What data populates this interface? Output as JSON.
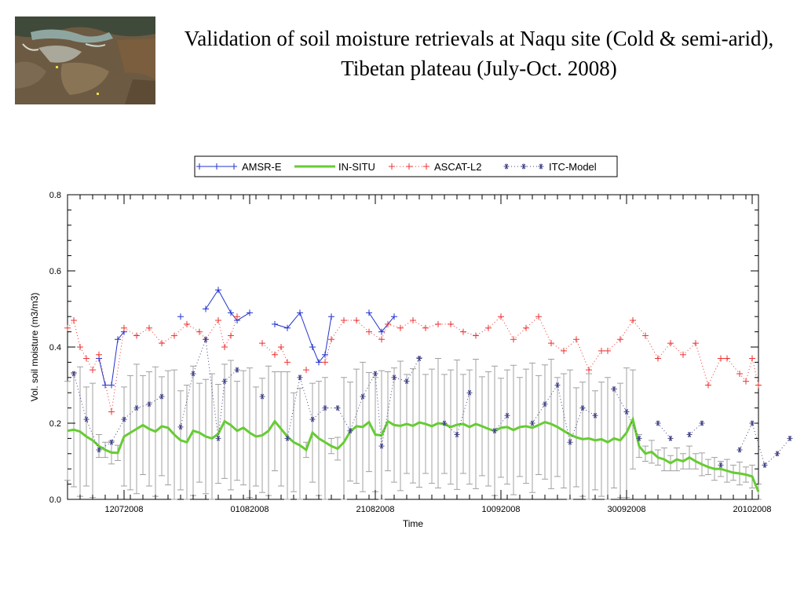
{
  "slide": {
    "title": "Validation of soil moisture retrievals at Naqu site (Cold & semi-arid), Tibetan plateau (July-Oct. 2008)"
  },
  "thumbnail": {
    "icon": "satellite-map-thumbnail"
  },
  "chart_data": {
    "type": "line",
    "xlabel": "Time",
    "ylabel": "Vol. soil moisture (m3/m3)",
    "x_unit": "date (DDMMYYYY)",
    "xlim": [
      "03072008",
      "21102008"
    ],
    "x_ticks": [
      "12072008",
      "01082008",
      "21082008",
      "10092008",
      "30092008",
      "20102008"
    ],
    "ylim": [
      0,
      0.8
    ],
    "y_ticks": [
      "0.0",
      "0.2",
      "0.4",
      "0.6",
      "0.8"
    ],
    "grid": false,
    "legend_position": "top-center",
    "series": [
      {
        "name": "AMSR-E",
        "color": "#2233cc",
        "marker": "+",
        "linestyle": "solid",
        "points": [
          [
            "08072008",
            0.37
          ],
          [
            "09072008",
            0.3
          ],
          [
            "10072008",
            0.3
          ],
          [
            "11072008",
            0.42
          ],
          [
            "12072008",
            0.44
          ],
          [
            "21072008",
            0.48
          ],
          [
            "25072008",
            0.5
          ],
          [
            "27072008",
            0.55
          ],
          [
            "29072008",
            0.49
          ],
          [
            "30072008",
            0.47
          ],
          [
            "01082008",
            0.49
          ],
          [
            "05082008",
            0.46
          ],
          [
            "07082008",
            0.45
          ],
          [
            "09082008",
            0.49
          ],
          [
            "11082008",
            0.4
          ],
          [
            "12082008",
            0.36
          ],
          [
            "13082008",
            0.38
          ],
          [
            "14082008",
            0.48
          ],
          [
            "20082008",
            0.49
          ],
          [
            "22082008",
            0.44
          ],
          [
            "24082008",
            0.48
          ]
        ]
      },
      {
        "name": "IN-SITU",
        "color": "#66cc33",
        "linestyle": "solid",
        "error_bars": true,
        "points": [
          [
            "03072008",
            0.18
          ],
          [
            "04072008",
            0.183
          ],
          [
            "05072008",
            0.178
          ],
          [
            "06072008",
            0.165
          ],
          [
            "07072008",
            0.155
          ],
          [
            "08072008",
            0.14
          ],
          [
            "09072008",
            0.13
          ],
          [
            "10072008",
            0.123
          ],
          [
            "11072008",
            0.122
          ],
          [
            "12072008",
            0.165
          ],
          [
            "13072008",
            0.175
          ],
          [
            "14072008",
            0.185
          ],
          [
            "15072008",
            0.195
          ],
          [
            "16072008",
            0.185
          ],
          [
            "17072008",
            0.178
          ],
          [
            "18072008",
            0.192
          ],
          [
            "19072008",
            0.188
          ],
          [
            "20072008",
            0.17
          ],
          [
            "21072008",
            0.155
          ],
          [
            "22072008",
            0.15
          ],
          [
            "23072008",
            0.18
          ],
          [
            "24072008",
            0.175
          ],
          [
            "25072008",
            0.165
          ],
          [
            "26072008",
            0.16
          ],
          [
            "27072008",
            0.172
          ],
          [
            "28072008",
            0.205
          ],
          [
            "29072008",
            0.195
          ],
          [
            "30072008",
            0.18
          ],
          [
            "31072008",
            0.188
          ],
          [
            "01082008",
            0.175
          ],
          [
            "02082008",
            0.165
          ],
          [
            "03082008",
            0.168
          ],
          [
            "04082008",
            0.18
          ],
          [
            "05082008",
            0.205
          ],
          [
            "06082008",
            0.185
          ],
          [
            "07082008",
            0.165
          ],
          [
            "08082008",
            0.15
          ],
          [
            "09082008",
            0.142
          ],
          [
            "10082008",
            0.13
          ],
          [
            "11082008",
            0.175
          ],
          [
            "12082008",
            0.16
          ],
          [
            "13082008",
            0.15
          ],
          [
            "14082008",
            0.14
          ],
          [
            "15082008",
            0.133
          ],
          [
            "16082008",
            0.15
          ],
          [
            "17082008",
            0.178
          ],
          [
            "18082008",
            0.192
          ],
          [
            "19082008",
            0.19
          ],
          [
            "20082008",
            0.203
          ],
          [
            "21082008",
            0.17
          ],
          [
            "22082008",
            0.168
          ],
          [
            "23082008",
            0.205
          ],
          [
            "24082008",
            0.195
          ],
          [
            "25082008",
            0.193
          ],
          [
            "26082008",
            0.198
          ],
          [
            "27082008",
            0.193
          ],
          [
            "28082008",
            0.202
          ],
          [
            "29082008",
            0.198
          ],
          [
            "30082008",
            0.192
          ],
          [
            "31082008",
            0.2
          ],
          [
            "01092008",
            0.198
          ],
          [
            "02092008",
            0.19
          ],
          [
            "03092008",
            0.196
          ],
          [
            "04092008",
            0.198
          ],
          [
            "05092008",
            0.19
          ],
          [
            "06092008",
            0.198
          ],
          [
            "07092008",
            0.192
          ],
          [
            "08092008",
            0.185
          ],
          [
            "09092008",
            0.18
          ],
          [
            "10092008",
            0.188
          ],
          [
            "11092008",
            0.19
          ],
          [
            "12092008",
            0.182
          ],
          [
            "13092008",
            0.19
          ],
          [
            "14092008",
            0.192
          ],
          [
            "15092008",
            0.188
          ],
          [
            "16092008",
            0.195
          ],
          [
            "17092008",
            0.203
          ],
          [
            "18092008",
            0.198
          ],
          [
            "19092008",
            0.19
          ],
          [
            "20092008",
            0.18
          ],
          [
            "21092008",
            0.17
          ],
          [
            "22092008",
            0.163
          ],
          [
            "23092008",
            0.158
          ],
          [
            "24092008",
            0.16
          ],
          [
            "25092008",
            0.155
          ],
          [
            "26092008",
            0.158
          ],
          [
            "27092008",
            0.15
          ],
          [
            "28092008",
            0.16
          ],
          [
            "29092008",
            0.155
          ],
          [
            "30092008",
            0.175
          ],
          [
            "01102008",
            0.21
          ],
          [
            "02102008",
            0.14
          ],
          [
            "03102008",
            0.12
          ],
          [
            "04102008",
            0.125
          ],
          [
            "05102008",
            0.11
          ],
          [
            "06102008",
            0.105
          ],
          [
            "07102008",
            0.095
          ],
          [
            "08102008",
            0.105
          ],
          [
            "09102008",
            0.1
          ],
          [
            "10102008",
            0.11
          ],
          [
            "11102008",
            0.1
          ],
          [
            "12102008",
            0.092
          ],
          [
            "13102008",
            0.085
          ],
          [
            "14102008",
            0.08
          ],
          [
            "15102008",
            0.08
          ],
          [
            "16102008",
            0.075
          ],
          [
            "17102008",
            0.07
          ],
          [
            "18102008",
            0.068
          ],
          [
            "19102008",
            0.065
          ],
          [
            "20102008",
            0.06
          ],
          [
            "21102008",
            0.02
          ]
        ]
      },
      {
        "name": "ASCAT-L2",
        "color": "#ee3333",
        "marker": "+",
        "linestyle": "dotted",
        "points": [
          [
            "03072008",
            0.45
          ],
          [
            "04072008",
            0.47
          ],
          [
            "05072008",
            0.4
          ],
          [
            "06072008",
            0.37
          ],
          [
            "07072008",
            0.34
          ],
          [
            "08072008",
            0.38
          ],
          [
            "10072008",
            0.23
          ],
          [
            "12072008",
            0.45
          ],
          [
            "14072008",
            0.43
          ],
          [
            "16072008",
            0.45
          ],
          [
            "18072008",
            0.41
          ],
          [
            "20072008",
            0.43
          ],
          [
            "22072008",
            0.46
          ],
          [
            "24072008",
            0.44
          ],
          [
            "25072008",
            0.42
          ],
          [
            "27072008",
            0.47
          ],
          [
            "28072008",
            0.4
          ],
          [
            "29072008",
            0.43
          ],
          [
            "30072008",
            0.48
          ],
          [
            "03082008",
            0.41
          ],
          [
            "05082008",
            0.38
          ],
          [
            "06082008",
            0.4
          ],
          [
            "07082008",
            0.36
          ],
          [
            "10082008",
            0.34
          ],
          [
            "13082008",
            0.36
          ],
          [
            "14082008",
            0.42
          ],
          [
            "16082008",
            0.47
          ],
          [
            "18082008",
            0.47
          ],
          [
            "20082008",
            0.44
          ],
          [
            "22082008",
            0.42
          ],
          [
            "23082008",
            0.46
          ],
          [
            "25082008",
            0.45
          ],
          [
            "27082008",
            0.47
          ],
          [
            "29082008",
            0.45
          ],
          [
            "31082008",
            0.46
          ],
          [
            "02092008",
            0.46
          ],
          [
            "04092008",
            0.44
          ],
          [
            "06092008",
            0.43
          ],
          [
            "08092008",
            0.45
          ],
          [
            "10092008",
            0.48
          ],
          [
            "12092008",
            0.42
          ],
          [
            "14092008",
            0.45
          ],
          [
            "16092008",
            0.48
          ],
          [
            "18092008",
            0.41
          ],
          [
            "20092008",
            0.39
          ],
          [
            "22092008",
            0.42
          ],
          [
            "24092008",
            0.34
          ],
          [
            "26092008",
            0.39
          ],
          [
            "27092008",
            0.39
          ],
          [
            "29092008",
            0.42
          ],
          [
            "01102008",
            0.47
          ],
          [
            "03102008",
            0.43
          ],
          [
            "05102008",
            0.37
          ],
          [
            "07102008",
            0.41
          ],
          [
            "09102008",
            0.38
          ],
          [
            "11102008",
            0.41
          ],
          [
            "13102008",
            0.3
          ],
          [
            "15102008",
            0.37
          ],
          [
            "16102008",
            0.37
          ],
          [
            "18102008",
            0.33
          ],
          [
            "19102008",
            0.31
          ],
          [
            "20102008",
            0.37
          ],
          [
            "21102008",
            0.3
          ]
        ]
      },
      {
        "name": "ITC-Model",
        "color": "#444488",
        "marker": "*",
        "linestyle": "dotted",
        "points": [
          [
            "04072008",
            0.33
          ],
          [
            "06072008",
            0.21
          ],
          [
            "08072008",
            0.13
          ],
          [
            "10072008",
            0.15
          ],
          [
            "12072008",
            0.21
          ],
          [
            "14072008",
            0.24
          ],
          [
            "16072008",
            0.25
          ],
          [
            "18072008",
            0.27
          ],
          [
            "21072008",
            0.19
          ],
          [
            "23072008",
            0.33
          ],
          [
            "25072008",
            0.42
          ],
          [
            "27072008",
            0.16
          ],
          [
            "28072008",
            0.31
          ],
          [
            "30072008",
            0.34
          ],
          [
            "03082008",
            0.27
          ],
          [
            "07082008",
            0.16
          ],
          [
            "09082008",
            0.32
          ],
          [
            "11082008",
            0.21
          ],
          [
            "13082008",
            0.24
          ],
          [
            "15082008",
            0.24
          ],
          [
            "17082008",
            0.18
          ],
          [
            "19082008",
            0.27
          ],
          [
            "21082008",
            0.33
          ],
          [
            "22082008",
            0.14
          ],
          [
            "24082008",
            0.32
          ],
          [
            "26082008",
            0.31
          ],
          [
            "28082008",
            0.37
          ],
          [
            "01092008",
            0.2
          ],
          [
            "03092008",
            0.17
          ],
          [
            "05092008",
            0.28
          ],
          [
            "09092008",
            0.18
          ],
          [
            "11092008",
            0.22
          ],
          [
            "15092008",
            0.2
          ],
          [
            "17092008",
            0.25
          ],
          [
            "19092008",
            0.3
          ],
          [
            "21092008",
            0.15
          ],
          [
            "23092008",
            0.24
          ],
          [
            "25092008",
            0.22
          ],
          [
            "28092008",
            0.29
          ],
          [
            "30092008",
            0.23
          ],
          [
            "02102008",
            0.16
          ],
          [
            "05102008",
            0.2
          ],
          [
            "07102008",
            0.16
          ],
          [
            "10102008",
            0.17
          ],
          [
            "12102008",
            0.2
          ],
          [
            "15102008",
            0.09
          ],
          [
            "18102008",
            0.13
          ],
          [
            "20102008",
            0.2
          ],
          [
            "22102008",
            0.09
          ],
          [
            "24102008",
            0.12
          ],
          [
            "26102008",
            0.16
          ]
        ]
      }
    ]
  }
}
